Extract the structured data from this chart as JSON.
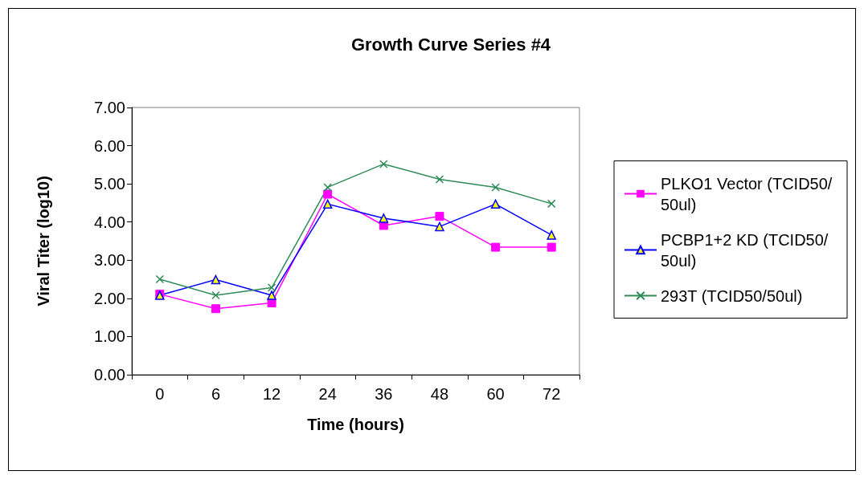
{
  "chart_data": {
    "type": "line",
    "title": "Growth Curve Series #4",
    "xlabel": "Time (hours)",
    "ylabel": "Viral Titer (log10)",
    "categories": [
      "0",
      "6",
      "12",
      "24",
      "36",
      "48",
      "60",
      "72"
    ],
    "ylim": [
      0,
      7
    ],
    "yticks": [
      {
        "value": 0,
        "label": "0.00"
      },
      {
        "value": 1,
        "label": "1.00"
      },
      {
        "value": 2,
        "label": "2.00"
      },
      {
        "value": 3,
        "label": "3.00"
      },
      {
        "value": 4,
        "label": "4.00"
      },
      {
        "value": 5,
        "label": "5.00"
      },
      {
        "value": 6,
        "label": "6.00"
      },
      {
        "value": 7,
        "label": "7.00"
      }
    ],
    "grid": false,
    "legend": "right",
    "series": [
      {
        "name": "PLKO1 Vector (TCID50/50ul)",
        "color": "#ff00ff",
        "marker": "square",
        "values": [
          2.11,
          1.73,
          1.88,
          4.73,
          3.91,
          4.15,
          3.34,
          3.34
        ]
      },
      {
        "name": "PCBP1+2 KD (TCID50/50ul)",
        "color": "#0000ff",
        "marker": "triangle",
        "values": [
          2.08,
          2.49,
          2.08,
          4.47,
          4.1,
          3.88,
          4.47,
          3.66
        ]
      },
      {
        "name": "293T (TCID50/50ul)",
        "color": "#2e8b57",
        "marker": "cross",
        "values": [
          2.5,
          2.08,
          2.28,
          4.91,
          5.52,
          5.12,
          4.91,
          4.48
        ]
      }
    ]
  }
}
